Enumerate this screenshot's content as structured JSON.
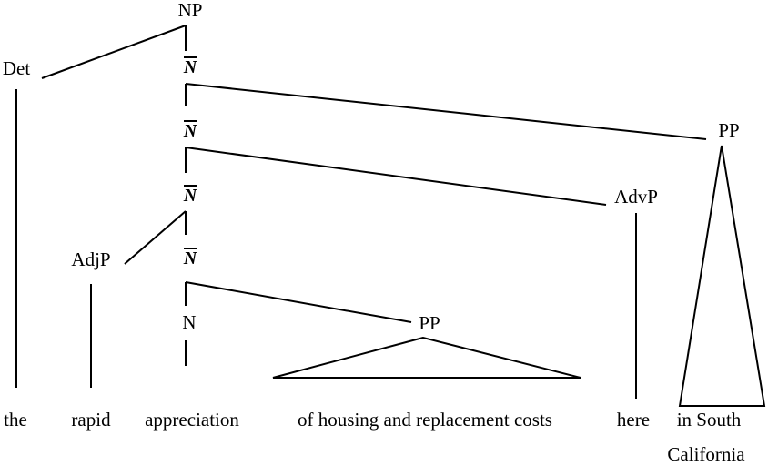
{
  "tree": {
    "root_label": "NP",
    "det_label": "Det",
    "nbar_labels": [
      "N",
      "N",
      "N",
      "N"
    ],
    "adjp_label": "AdjP",
    "n_label": "N",
    "pp_inner_label": "PP",
    "advp_label": "AdvP",
    "pp_outer_label": "PP",
    "words": {
      "the": "the",
      "rapid": "rapid",
      "appreciation": "appreciation",
      "of_phrase": "of housing and replacement costs",
      "here": "here",
      "in_south": "in South",
      "california": "California"
    }
  }
}
